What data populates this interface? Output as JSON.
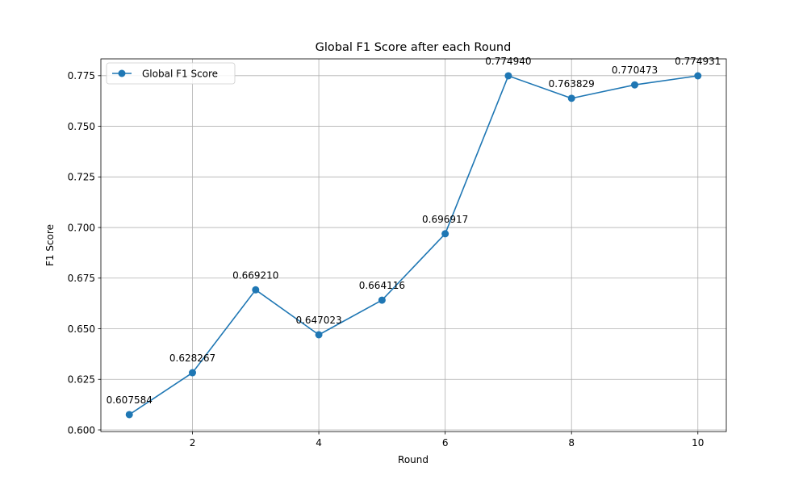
{
  "chart_data": {
    "type": "line",
    "title": "Global F1 Score after each Round",
    "xlabel": "Round",
    "ylabel": "F1 Score",
    "xlim": [
      0.55,
      10.45
    ],
    "ylim": [
      0.5992,
      0.7833
    ],
    "xticks": [
      2,
      4,
      6,
      8,
      10
    ],
    "yticks": [
      0.6,
      0.625,
      0.65,
      0.675,
      0.7,
      0.725,
      0.75,
      0.775
    ],
    "ytick_labels": [
      "0.600",
      "0.625",
      "0.650",
      "0.675",
      "0.700",
      "0.725",
      "0.750",
      "0.775"
    ],
    "grid": true,
    "legend": {
      "position": "top-left"
    },
    "series": [
      {
        "name": "Global F1 Score",
        "color": "#1f77b4",
        "marker": "circle",
        "x": [
          1,
          2,
          3,
          4,
          5,
          6,
          7,
          8,
          9,
          10
        ],
        "values": [
          0.607584,
          0.628267,
          0.66921,
          0.647023,
          0.664116,
          0.696917,
          0.77494,
          0.763829,
          0.770473,
          0.774931
        ],
        "labels": [
          "0.607584",
          "0.628267",
          "0.669210",
          "0.647023",
          "0.664116",
          "0.696917",
          "0.774940",
          "0.763829",
          "0.770473",
          "0.774931"
        ]
      }
    ]
  }
}
